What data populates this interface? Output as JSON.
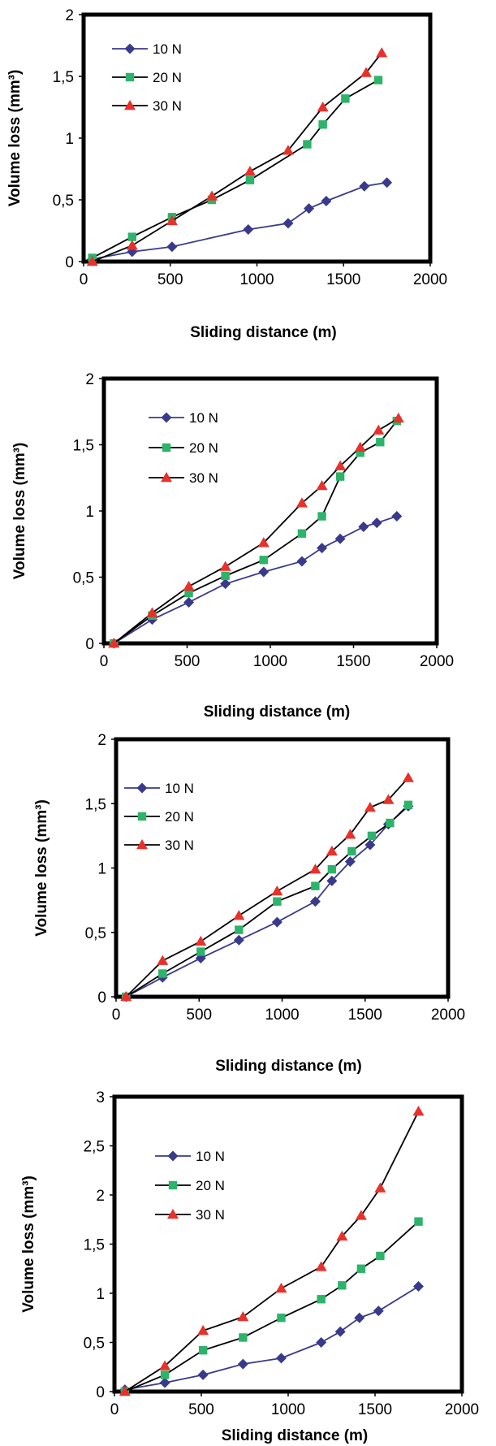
{
  "chart_data": [
    {
      "type": "line",
      "xlabel": "Sliding distance (m)",
      "ylabel": "Volume loss (mm³)",
      "xlim": [
        0,
        2000
      ],
      "ylim": [
        0,
        2
      ],
      "xticks": [
        "0",
        "500",
        "1000",
        "1500",
        "2000"
      ],
      "yticks": [
        "0",
        "0,5",
        "1",
        "1,5",
        "2"
      ],
      "grid": false,
      "legend": "top-left",
      "series": [
        {
          "name": "10 N",
          "color": "#3a3a8c",
          "marker": "diamond",
          "x": [
            50,
            280,
            510,
            950,
            1180,
            1300,
            1400,
            1620,
            1750
          ],
          "y": [
            0.02,
            0.08,
            0.12,
            0.26,
            0.31,
            0.43,
            0.49,
            0.61,
            0.64
          ]
        },
        {
          "name": "20 N",
          "color": "#2db36a",
          "marker": "square",
          "x": [
            50,
            280,
            510,
            740,
            960,
            1290,
            1380,
            1510,
            1700
          ],
          "y": [
            0.03,
            0.2,
            0.36,
            0.5,
            0.66,
            0.95,
            1.11,
            1.32,
            1.47
          ]
        },
        {
          "name": "30 N",
          "color": "#e8312a",
          "marker": "triangle",
          "x": [
            50,
            280,
            510,
            740,
            960,
            1180,
            1380,
            1630,
            1720
          ],
          "y": [
            0.0,
            0.13,
            0.33,
            0.53,
            0.73,
            0.9,
            1.25,
            1.53,
            1.69
          ]
        }
      ]
    },
    {
      "type": "line",
      "xlabel": "Sliding distance (m)",
      "ylabel": "Volume loss (mm³)",
      "xlim": [
        0,
        2000
      ],
      "ylim": [
        0,
        2
      ],
      "xticks": [
        "0",
        "500",
        "1000",
        "1500",
        "2000"
      ],
      "yticks": [
        "0",
        "0,5",
        "1",
        "1,5",
        "2"
      ],
      "grid": false,
      "legend": "top-left",
      "series": [
        {
          "name": "10 N",
          "color": "#3a3a8c",
          "marker": "diamond",
          "x": [
            60,
            290,
            510,
            730,
            960,
            1190,
            1310,
            1420,
            1560,
            1640,
            1760
          ],
          "y": [
            0.0,
            0.18,
            0.31,
            0.45,
            0.54,
            0.62,
            0.72,
            0.79,
            0.88,
            0.91,
            0.96
          ]
        },
        {
          "name": "20 N",
          "color": "#2db36a",
          "marker": "square",
          "x": [
            60,
            290,
            510,
            730,
            960,
            1190,
            1310,
            1420,
            1540,
            1660,
            1760
          ],
          "y": [
            0.0,
            0.21,
            0.38,
            0.51,
            0.63,
            0.83,
            0.96,
            1.26,
            1.44,
            1.52,
            1.68
          ]
        },
        {
          "name": "30 N",
          "color": "#e8312a",
          "marker": "triangle",
          "x": [
            60,
            290,
            510,
            730,
            960,
            1190,
            1310,
            1420,
            1540,
            1650,
            1770
          ],
          "y": [
            0.0,
            0.23,
            0.43,
            0.58,
            0.76,
            1.06,
            1.19,
            1.34,
            1.48,
            1.61,
            1.7
          ]
        }
      ]
    },
    {
      "type": "line",
      "xlabel": "Sliding distance (m)",
      "ylabel": "Volume loss (mm³)",
      "xlim": [
        0,
        2000
      ],
      "ylim": [
        0,
        2
      ],
      "xticks": [
        "0",
        "500",
        "1000",
        "1500",
        "2000"
      ],
      "yticks": [
        "0",
        "0,5",
        "1",
        "1,5",
        "2"
      ],
      "grid": false,
      "legend": "top-left",
      "series": [
        {
          "name": "10 N",
          "color": "#3a3a8c",
          "marker": "diamond",
          "x": [
            60,
            280,
            510,
            740,
            970,
            1200,
            1300,
            1410,
            1530,
            1640,
            1760
          ],
          "y": [
            0.0,
            0.15,
            0.3,
            0.44,
            0.58,
            0.74,
            0.9,
            1.05,
            1.18,
            1.34,
            1.48
          ]
        },
        {
          "name": "20 N",
          "color": "#2db36a",
          "marker": "square",
          "x": [
            60,
            280,
            510,
            740,
            970,
            1200,
            1300,
            1420,
            1540,
            1650,
            1760
          ],
          "y": [
            0.0,
            0.18,
            0.35,
            0.52,
            0.74,
            0.86,
            0.99,
            1.13,
            1.25,
            1.35,
            1.49
          ]
        },
        {
          "name": "30 N",
          "color": "#e8312a",
          "marker": "triangle",
          "x": [
            60,
            280,
            510,
            740,
            970,
            1200,
            1300,
            1410,
            1530,
            1640,
            1760
          ],
          "y": [
            0.0,
            0.28,
            0.43,
            0.63,
            0.82,
            0.99,
            1.13,
            1.26,
            1.47,
            1.53,
            1.7
          ]
        }
      ]
    },
    {
      "type": "line",
      "xlabel": "Sliding distance (m)",
      "ylabel": "Volume loss (mm³)",
      "xlim": [
        0,
        2000
      ],
      "ylim": [
        0,
        3
      ],
      "xticks": [
        "0",
        "500",
        "1000",
        "1500",
        "2000"
      ],
      "yticks": [
        "0",
        "0,5",
        "1",
        "1,5",
        "2",
        "2,5",
        "3"
      ],
      "grid": false,
      "legend": "top-left",
      "series": [
        {
          "name": "10 N",
          "color": "#3a3a8c",
          "marker": "diamond",
          "x": [
            60,
            290,
            510,
            740,
            960,
            1190,
            1300,
            1410,
            1520,
            1750
          ],
          "y": [
            0.02,
            0.09,
            0.17,
            0.28,
            0.34,
            0.5,
            0.61,
            0.75,
            0.82,
            1.07
          ]
        },
        {
          "name": "20 N",
          "color": "#2db36a",
          "marker": "square",
          "x": [
            60,
            290,
            510,
            740,
            960,
            1190,
            1310,
            1420,
            1530,
            1750
          ],
          "y": [
            0.0,
            0.17,
            0.42,
            0.55,
            0.75,
            0.94,
            1.08,
            1.25,
            1.38,
            1.73
          ]
        },
        {
          "name": "30 N",
          "color": "#e8312a",
          "marker": "triangle",
          "x": [
            60,
            290,
            510,
            740,
            960,
            1190,
            1310,
            1420,
            1530,
            1750
          ],
          "y": [
            0.0,
            0.26,
            0.62,
            0.76,
            1.05,
            1.27,
            1.58,
            1.79,
            2.07,
            2.85
          ]
        }
      ]
    }
  ]
}
